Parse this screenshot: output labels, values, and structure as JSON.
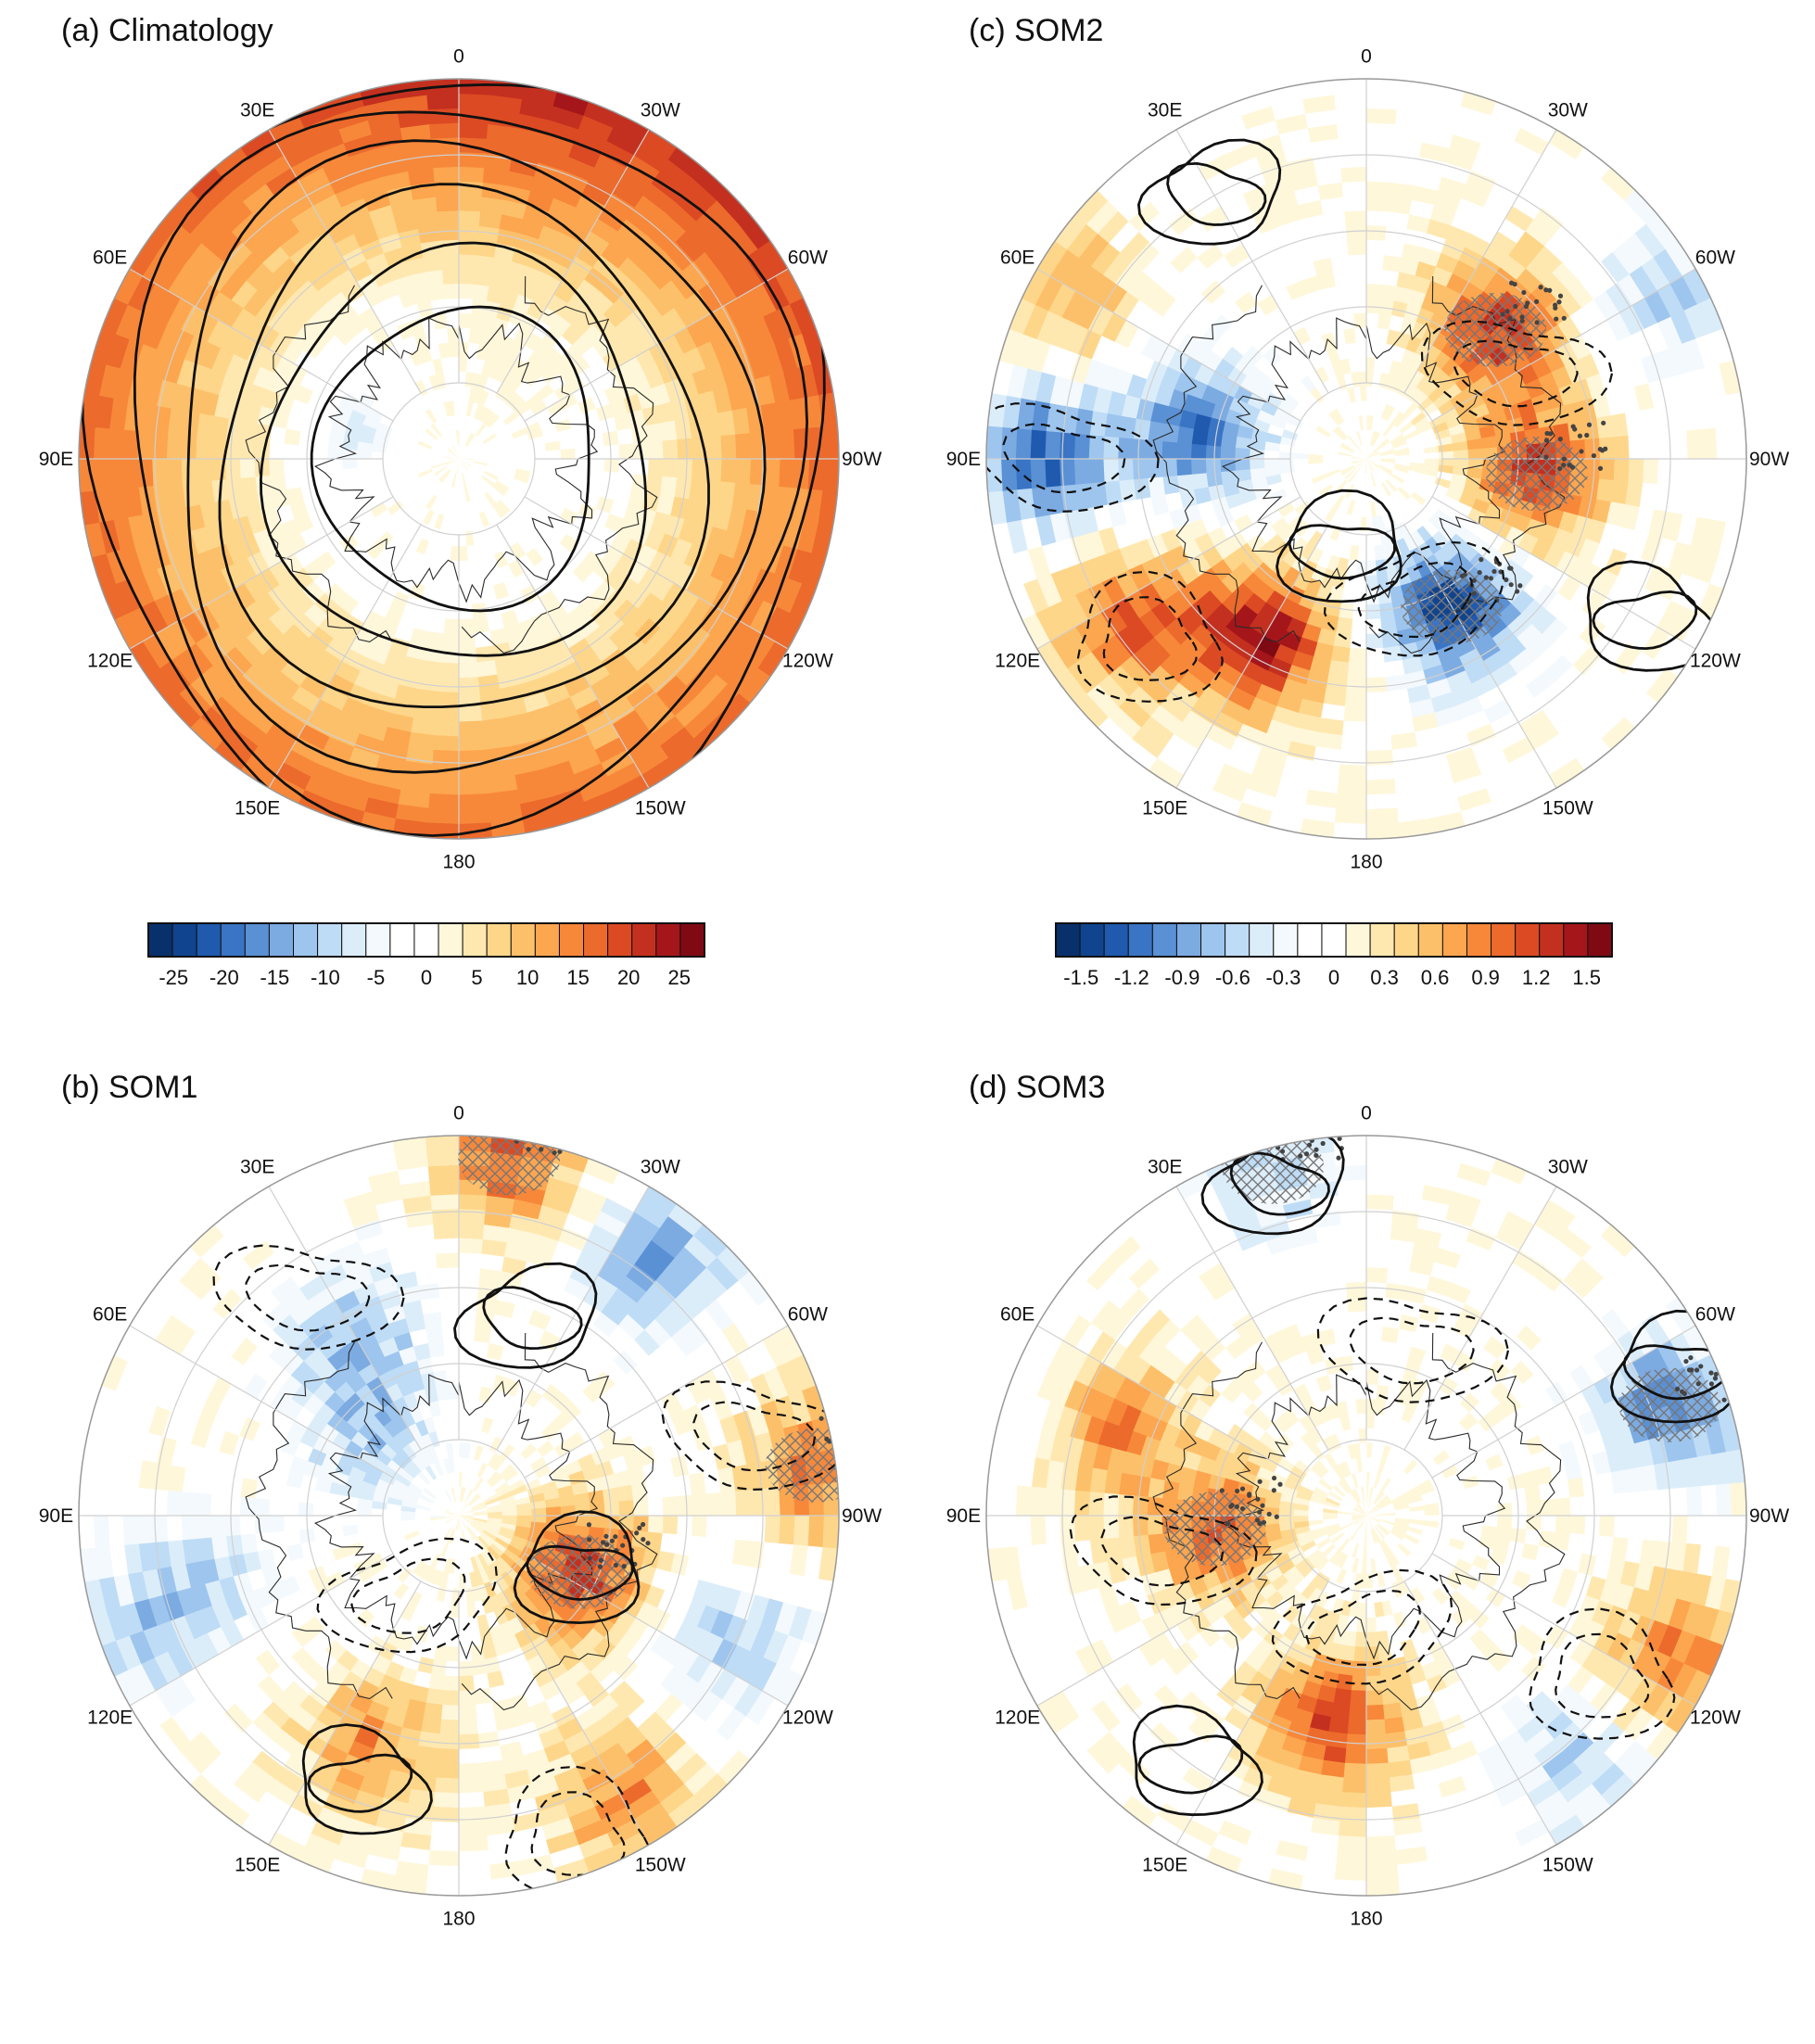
{
  "colors": {
    "scale": [
      "#08306b",
      "#10448f",
      "#1f5aae",
      "#3a74c4",
      "#5a90d4",
      "#7cabe2",
      "#9dc5ee",
      "#bedcf5",
      "#dcedfa",
      "#f3f9fd",
      "#ffffff",
      "#ffffff",
      "#fff7da",
      "#ffe8b0",
      "#fed68a",
      "#fdc06a",
      "#fca64f",
      "#f7883a",
      "#ec6a2c",
      "#dc4a24",
      "#c4301f",
      "#a5161b",
      "#7f0a13"
    ],
    "contour": "#111111",
    "coast": "#2a2a2a",
    "grid": "#d0d0d0",
    "hatch": "#777777",
    "stipple": "#444444"
  },
  "chart_data": [
    {
      "id": "a",
      "type": "heatmap",
      "title": "(a) Climatology",
      "projection": "north-polar-stereographic",
      "lon_labels": [
        "0",
        "30W",
        "60W",
        "90W",
        "120W",
        "150W",
        "180",
        "150E",
        "120E",
        "90E",
        "60E",
        "30E"
      ],
      "colorbar": {
        "min": -27.5,
        "max": 27.5,
        "step": 2.5,
        "tick_labels": [
          "-25",
          "-20",
          "-15",
          "-10",
          "-5",
          "0",
          "5",
          "10",
          "15",
          "20",
          "25"
        ]
      },
      "field": {
        "type": "climatology",
        "pole_value": 0,
        "edge_value": 17,
        "outer_boost": 6,
        "boost_center_deg": 20,
        "cold_center": {
          "lon": 285,
          "value": -9
        }
      },
      "contours": {
        "type": "rings",
        "levels": [
          0.38,
          0.52,
          0.66,
          0.79,
          0.91,
          1.0
        ],
        "inner_lon": 200
      }
    },
    {
      "id": "b",
      "type": "heatmap",
      "title": "(b) SOM1",
      "projection": "north-polar-stereographic",
      "lon_labels": [
        "0",
        "30W",
        "60W",
        "90W",
        "120W",
        "150W",
        "180",
        "150E",
        "120E",
        "90E",
        "60E",
        "30E"
      ],
      "field": {
        "type": "anomaly",
        "centers": [
          {
            "lon": 8,
            "r": 0.95,
            "v": 1.0
          },
          {
            "lon": 115,
            "r": 0.35,
            "v": 1.2
          },
          {
            "lon": 82,
            "r": 0.95,
            "v": 0.9
          },
          {
            "lon": 38,
            "r": 0.85,
            "v": -0.9
          },
          {
            "lon": 330,
            "r": 0.55,
            "v": -0.7
          },
          {
            "lon": 310,
            "r": 0.3,
            "v": -0.6
          },
          {
            "lon": 255,
            "r": 0.7,
            "v": -0.5
          },
          {
            "lon": 200,
            "r": 0.65,
            "v": 0.8
          },
          {
            "lon": 150,
            "r": 0.85,
            "v": 0.8
          },
          {
            "lon": 115,
            "r": 0.8,
            "v": -0.6
          },
          {
            "lon": 250,
            "r": 0.9,
            "v": -0.5
          }
        ]
      },
      "contours": {
        "type": "anomaly",
        "highs": [
          {
            "lon": 20,
            "r": 0.55
          },
          {
            "lon": 115,
            "r": 0.35
          },
          {
            "lon": 200,
            "r": 0.75
          }
        ],
        "lows": [
          {
            "lon": 325,
            "r": 0.7
          },
          {
            "lon": 210,
            "r": 0.25
          },
          {
            "lon": 160,
            "r": 0.9
          },
          {
            "lon": 75,
            "r": 0.8
          }
        ]
      }
    },
    {
      "id": "c",
      "type": "heatmap",
      "title": "(c) SOM2",
      "projection": "north-polar-stereographic",
      "lon_labels": [
        "0",
        "30W",
        "60W",
        "90W",
        "120W",
        "150W",
        "180",
        "150E",
        "120E",
        "90E",
        "60E",
        "30E"
      ],
      "colorbar": {
        "min": -1.65,
        "max": 1.65,
        "step": 0.15,
        "tick_labels": [
          "-1.5",
          "-1.2",
          "-0.9",
          "-0.6",
          "-0.3",
          "0",
          "0.3",
          "0.6",
          "0.9",
          "1.2",
          "1.5"
        ]
      },
      "field": {
        "type": "anomaly",
        "centers": [
          {
            "lon": 45,
            "r": 0.48,
            "v": 1.2
          },
          {
            "lon": 95,
            "r": 0.45,
            "v": 1.2
          },
          {
            "lon": 150,
            "r": 0.45,
            "v": -1.4
          },
          {
            "lon": 210,
            "r": 0.55,
            "v": 1.5
          },
          {
            "lon": 235,
            "r": 0.75,
            "v": 1.1
          },
          {
            "lon": 280,
            "r": 0.45,
            "v": -1.1
          },
          {
            "lon": 270,
            "r": 0.85,
            "v": -1.2
          },
          {
            "lon": 60,
            "r": 0.9,
            "v": -0.6
          },
          {
            "lon": 300,
            "r": 0.9,
            "v": 0.6
          }
        ]
      },
      "contours": {
        "type": "anomaly",
        "highs": [
          {
            "lon": 330,
            "r": 0.8
          },
          {
            "lon": 195,
            "r": 0.25
          },
          {
            "lon": 120,
            "r": 0.85
          }
        ],
        "lows": [
          {
            "lon": 60,
            "r": 0.45
          },
          {
            "lon": 160,
            "r": 0.4
          },
          {
            "lon": 230,
            "r": 0.75
          },
          {
            "lon": 270,
            "r": 0.8
          }
        ]
      }
    },
    {
      "id": "d",
      "type": "heatmap",
      "title": "(d) SOM3",
      "projection": "north-polar-stereographic",
      "lon_labels": [
        "0",
        "30W",
        "60W",
        "90W",
        "120W",
        "150W",
        "180",
        "150E",
        "120E",
        "90E",
        "60E",
        "30E"
      ],
      "field": {
        "type": "anomaly",
        "centers": [
          {
            "lon": 70,
            "r": 0.85,
            "v": -1.0
          },
          {
            "lon": 345,
            "r": 0.95,
            "v": -0.6
          },
          {
            "lon": 265,
            "r": 0.4,
            "v": 1.0
          },
          {
            "lon": 290,
            "r": 0.85,
            "v": -0.7
          },
          {
            "lon": 190,
            "r": 0.55,
            "v": 1.2
          },
          {
            "lon": 115,
            "r": 0.9,
            "v": 0.9
          },
          {
            "lon": 140,
            "r": 0.85,
            "v": -0.6
          },
          {
            "lon": 290,
            "r": 0.75,
            "v": 1.3
          }
        ]
      },
      "contours": {
        "type": "anomaly",
        "highs": [
          {
            "lon": 345,
            "r": 0.9
          },
          {
            "lon": 65,
            "r": 0.9
          },
          {
            "lon": 215,
            "r": 0.8
          }
        ],
        "lows": [
          {
            "lon": 15,
            "r": 0.45
          },
          {
            "lon": 180,
            "r": 0.3
          },
          {
            "lon": 125,
            "r": 0.75
          },
          {
            "lon": 260,
            "r": 0.55
          }
        ]
      }
    }
  ]
}
